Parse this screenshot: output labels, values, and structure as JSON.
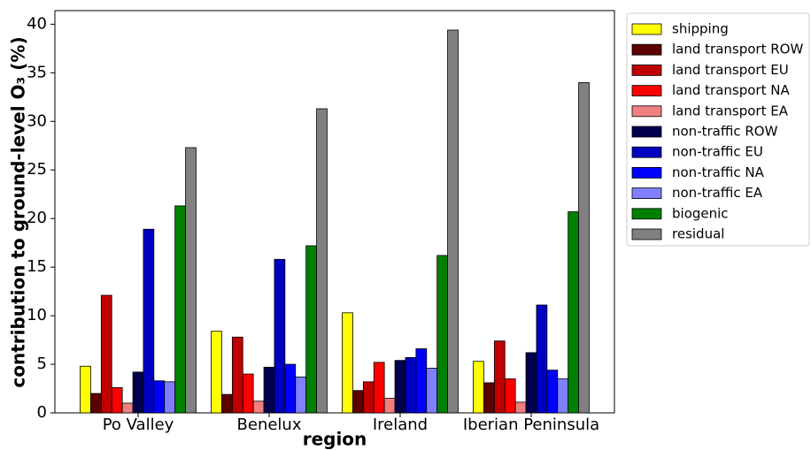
{
  "chart_data": {
    "type": "bar",
    "x_label": "region",
    "y_label": "contribution to ground-level O₃ (%)",
    "categories": [
      "Po Valley",
      "Benelux",
      "Ireland",
      "Iberian Peninsula"
    ],
    "ylim": [
      0,
      41.4
    ],
    "yticks": [
      0,
      5,
      10,
      15,
      20,
      25,
      30,
      35,
      40
    ],
    "legend": "outside-right",
    "series": [
      {
        "name": "shipping",
        "color": "#ffff00",
        "values": [
          4.8,
          8.4,
          10.3,
          5.3
        ]
      },
      {
        "name": "land transport ROW",
        "color": "#5c0000",
        "values": [
          2.0,
          1.9,
          2.3,
          3.1
        ]
      },
      {
        "name": "land transport EU",
        "color": "#c00000",
        "values": [
          12.1,
          7.8,
          3.2,
          7.4
        ]
      },
      {
        "name": "land transport NA",
        "color": "#ff0000",
        "values": [
          2.6,
          4.0,
          5.2,
          3.5
        ]
      },
      {
        "name": "land transport EA",
        "color": "#f08080",
        "values": [
          1.0,
          1.2,
          1.5,
          1.1
        ]
      },
      {
        "name": "non-traffic ROW",
        "color": "#00004d",
        "values": [
          4.2,
          4.7,
          5.4,
          6.2
        ]
      },
      {
        "name": "non-traffic EU",
        "color": "#0000c0",
        "values": [
          18.9,
          15.8,
          5.7,
          11.1
        ]
      },
      {
        "name": "non-traffic NA",
        "color": "#0000ff",
        "values": [
          3.3,
          5.0,
          6.6,
          4.4
        ]
      },
      {
        "name": "non-traffic EA",
        "color": "#8080ff",
        "values": [
          3.2,
          3.7,
          4.6,
          3.5
        ]
      },
      {
        "name": "biogenic",
        "color": "#008000",
        "values": [
          21.3,
          17.2,
          16.2,
          20.7
        ]
      },
      {
        "name": "residual",
        "color": "#808080",
        "values": [
          27.3,
          31.3,
          39.4,
          34.0
        ]
      }
    ]
  }
}
